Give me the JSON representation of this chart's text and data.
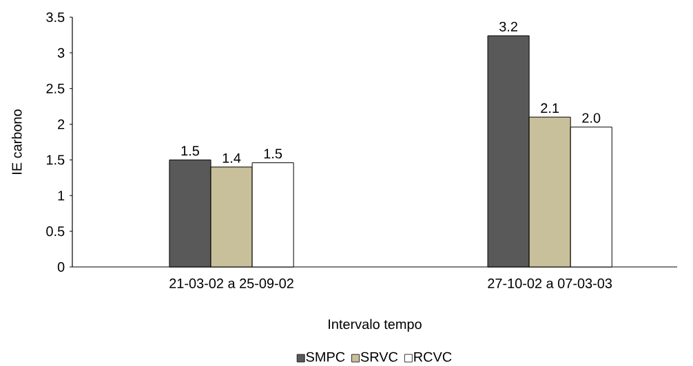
{
  "chart_data": {
    "type": "bar",
    "xlabel": "Intervalo tempo",
    "ylabel": "IE carbono",
    "categories": [
      "21-03-02 a 25-09-02",
      "27-10-02 a 07-03-03"
    ],
    "series": [
      {
        "name": "SMPC",
        "color": "#595959",
        "values": [
          1.5,
          3.24
        ],
        "value_labels": [
          "1.5",
          "3.2"
        ]
      },
      {
        "name": "SRVC",
        "color": "#c8c09a",
        "values": [
          1.4,
          2.1
        ],
        "value_labels": [
          "1.4",
          "2.1"
        ]
      },
      {
        "name": "RCVC",
        "color": "#ffffff",
        "values": [
          1.46,
          1.96
        ],
        "value_labels": [
          "1.5",
          "2.0"
        ]
      }
    ],
    "ylim": [
      0,
      3.5
    ],
    "yticks": [
      0,
      0.5,
      1,
      1.5,
      2,
      2.5,
      3,
      3.5
    ],
    "legend": "bottom"
  }
}
